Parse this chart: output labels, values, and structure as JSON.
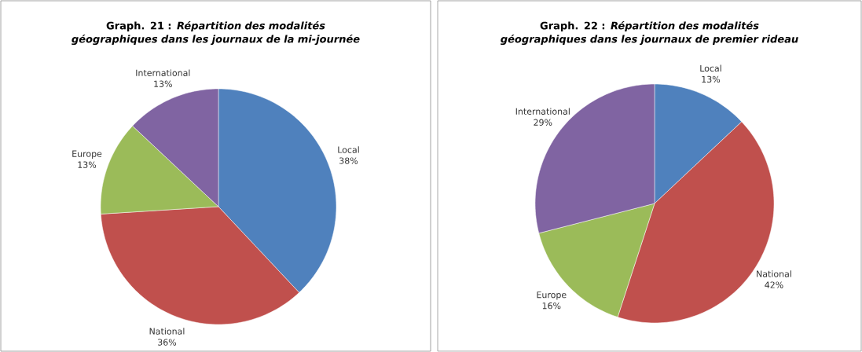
{
  "chart_data": [
    {
      "type": "pie",
      "title": "Graph. 21 : *Répartition des modalités géographiques dans les journaux de la mi-journée*",
      "categories": [
        "Local",
        "National",
        "Europe",
        "International"
      ],
      "values": [
        38,
        36,
        13,
        13
      ],
      "value_labels": [
        "38%",
        "36%",
        "13%",
        "13%"
      ],
      "colors": [
        "#4f81bd",
        "#c0504d",
        "#9bbb59",
        "#8064a2"
      ],
      "legend": false
    },
    {
      "type": "pie",
      "title": "Graph. 22 : *Répartition des modalités géographiques dans les journaux de premier rideau*",
      "categories": [
        "Local",
        "National",
        "Europe",
        "International"
      ],
      "values": [
        13,
        42,
        16,
        29
      ],
      "value_labels": [
        "13%",
        "42%",
        "16%",
        "29%"
      ],
      "colors": [
        "#4f81bd",
        "#c0504d",
        "#9bbb59",
        "#8064a2"
      ],
      "legend": false
    }
  ]
}
